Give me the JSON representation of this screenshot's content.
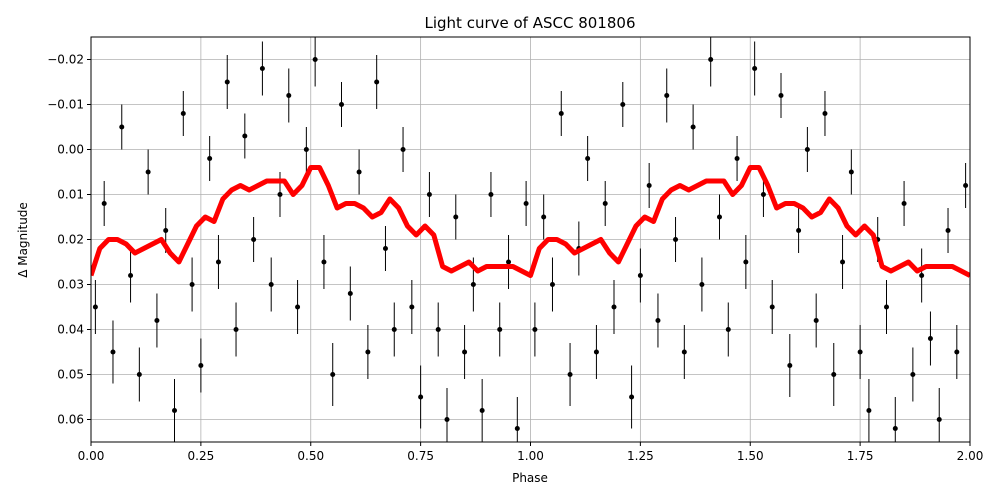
{
  "chart_data": {
    "type": "scatter",
    "title": "Light curve of ASCC 801806",
    "xlabel": "Phase",
    "ylabel": "Δ Magnitude",
    "xlim": [
      0,
      2
    ],
    "ylim": [
      0.065,
      -0.025
    ],
    "xticks": [
      {
        "value": 0,
        "label": "0.00"
      },
      0.25,
      {
        "value": 0.5,
        "label": "0.50"
      },
      0.75,
      {
        "value": 1,
        "label": "1.00"
      },
      1.25,
      {
        "value": 1.5,
        "label": "1.50"
      },
      1.75,
      {
        "value": 2,
        "label": "2.00"
      }
    ],
    "yticks": [
      {
        "value": -0.02,
        "label": "−0.02"
      },
      {
        "value": -0.01,
        "label": "−0.01"
      },
      {
        "value": 0,
        "label": "0.00"
      },
      0.01,
      0.02,
      0.03,
      0.04,
      0.05,
      0.06
    ],
    "grid": true,
    "series": [
      {
        "type": "errorbar",
        "color": "#000000",
        "x": [
          0.01,
          0.03,
          0.05,
          0.07,
          0.09,
          0.11,
          0.13,
          0.15,
          0.17,
          0.19,
          0.21,
          0.23,
          0.25,
          0.27,
          0.29,
          0.31,
          0.33,
          0.35,
          0.37,
          0.39,
          0.41,
          0.43,
          0.45,
          0.47,
          0.49,
          0.51,
          0.53,
          0.55,
          0.57,
          0.59,
          0.61,
          0.63,
          0.65,
          0.67,
          0.69,
          0.71,
          0.73,
          0.75,
          0.77,
          0.79,
          0.81,
          0.83,
          0.85,
          0.87,
          0.89,
          0.91,
          0.93,
          0.95,
          0.97,
          0.99,
          1.01,
          1.03,
          1.05,
          1.07,
          1.09,
          1.11,
          1.13,
          1.15,
          1.17,
          1.19,
          1.21,
          1.23,
          1.25,
          1.27,
          1.29,
          1.31,
          1.33,
          1.35,
          1.37,
          1.39,
          1.41,
          1.43,
          1.45,
          1.47,
          1.49,
          1.51,
          1.53,
          1.55,
          1.57,
          1.59,
          1.61,
          1.63,
          1.65,
          1.67,
          1.69,
          1.71,
          1.73,
          1.75,
          1.77,
          1.79,
          1.81,
          1.83,
          1.85,
          1.87,
          1.89,
          1.91,
          1.93,
          1.95,
          1.97,
          1.99
        ],
        "values": [
          0.035,
          0.012,
          0.045,
          -0.005,
          0.028,
          0.05,
          0.005,
          0.038,
          0.018,
          0.058,
          -0.008,
          0.03,
          0.048,
          0.002,
          0.025,
          -0.015,
          0.04,
          -0.003,
          0.02,
          -0.018,
          0.03,
          0.01,
          -0.012,
          0.035,
          0,
          -0.02,
          0.025,
          0.05,
          -0.01,
          0.032,
          0.005,
          0.045,
          -0.015,
          0.022,
          0.04,
          0,
          0.035,
          0.055,
          0.01,
          0.04,
          0.06,
          0.015,
          0.045,
          0.03,
          0.058,
          0.01,
          0.04,
          0.025,
          0.062,
          0.012,
          0.04,
          0.015,
          0.03,
          -0.008,
          0.05,
          0.022,
          0.002,
          0.045,
          0.012,
          0.035,
          -0.01,
          0.055,
          0.028,
          0.008,
          0.038,
          -0.012,
          0.02,
          0.045,
          -0.005,
          0.03,
          -0.02,
          0.015,
          0.04,
          0.002,
          0.025,
          -0.018,
          0.01,
          0.035,
          -0.012,
          0.048,
          0.018,
          0,
          0.038,
          -0.008,
          0.05,
          0.025,
          0.005,
          0.045,
          0.058,
          0.02,
          0.035,
          0.062,
          0.012,
          0.05,
          0.028,
          0.042,
          0.06,
          0.018,
          0.045,
          0.008
        ],
        "errors": [
          0.006,
          0.005,
          0.007,
          0.005,
          0.006,
          0.006,
          0.005,
          0.006,
          0.005,
          0.007,
          0.005,
          0.006,
          0.006,
          0.005,
          0.006,
          0.006,
          0.006,
          0.005,
          0.005,
          0.006,
          0.006,
          0.005,
          0.006,
          0.006,
          0.005,
          0.006,
          0.006,
          0.007,
          0.005,
          0.006,
          0.005,
          0.006,
          0.006,
          0.005,
          0.006,
          0.005,
          0.006,
          0.007,
          0.005,
          0.006,
          0.007,
          0.005,
          0.006,
          0.006,
          0.007,
          0.005,
          0.006,
          0.006,
          0.007,
          0.005,
          0.006,
          0.005,
          0.006,
          0.005,
          0.007,
          0.006,
          0.005,
          0.006,
          0.005,
          0.006,
          0.005,
          0.007,
          0.006,
          0.005,
          0.006,
          0.006,
          0.005,
          0.006,
          0.005,
          0.006,
          0.006,
          0.005,
          0.006,
          0.005,
          0.006,
          0.006,
          0.005,
          0.006,
          0.005,
          0.007,
          0.005,
          0.005,
          0.006,
          0.005,
          0.007,
          0.006,
          0.005,
          0.006,
          0.007,
          0.005,
          0.006,
          0.007,
          0.005,
          0.006,
          0.006,
          0.006,
          0.007,
          0.005,
          0.006,
          0.005
        ]
      },
      {
        "type": "line",
        "color": "#ff0000",
        "x": [
          0,
          0.02,
          0.04,
          0.06,
          0.08,
          0.1,
          0.12,
          0.14,
          0.16,
          0.18,
          0.2,
          0.22,
          0.24,
          0.26,
          0.28,
          0.3,
          0.32,
          0.34,
          0.36,
          0.38,
          0.4,
          0.42,
          0.44,
          0.46,
          0.48,
          0.5,
          0.52,
          0.54,
          0.56,
          0.58,
          0.6,
          0.62,
          0.64,
          0.66,
          0.68,
          0.7,
          0.72,
          0.74,
          0.76,
          0.78,
          0.8,
          0.82,
          0.84,
          0.86,
          0.88,
          0.9,
          0.92,
          0.94,
          0.96,
          0.98,
          1,
          1.02,
          1.04,
          1.06,
          1.08,
          1.1,
          1.12,
          1.14,
          1.16,
          1.18,
          1.2,
          1.22,
          1.24,
          1.26,
          1.28,
          1.3,
          1.32,
          1.34,
          1.36,
          1.38,
          1.4,
          1.42,
          1.44,
          1.46,
          1.48,
          1.5,
          1.52,
          1.54,
          1.56,
          1.58,
          1.6,
          1.62,
          1.64,
          1.66,
          1.68,
          1.7,
          1.72,
          1.74,
          1.76,
          1.78,
          1.8,
          1.82,
          1.84,
          1.86,
          1.88,
          1.9,
          1.92,
          1.94,
          1.96,
          1.98,
          2
        ],
        "values": [
          0.028,
          0.022,
          0.02,
          0.02,
          0.021,
          0.023,
          0.022,
          0.021,
          0.02,
          0.023,
          0.025,
          0.021,
          0.017,
          0.015,
          0.016,
          0.011,
          0.009,
          0.008,
          0.009,
          0.008,
          0.007,
          0.007,
          0.007,
          0.01,
          0.008,
          0.004,
          0.004,
          0.008,
          0.013,
          0.012,
          0.012,
          0.013,
          0.015,
          0.014,
          0.011,
          0.013,
          0.017,
          0.019,
          0.017,
          0.019,
          0.026,
          0.027,
          0.026,
          0.025,
          0.027,
          0.026,
          0.026,
          0.026,
          0.026,
          0.027,
          0.028,
          0.022,
          0.02,
          0.02,
          0.021,
          0.023,
          0.022,
          0.021,
          0.02,
          0.023,
          0.025,
          0.021,
          0.017,
          0.015,
          0.016,
          0.011,
          0.009,
          0.008,
          0.009,
          0.008,
          0.007,
          0.007,
          0.007,
          0.01,
          0.008,
          0.004,
          0.004,
          0.008,
          0.013,
          0.012,
          0.012,
          0.013,
          0.015,
          0.014,
          0.011,
          0.013,
          0.017,
          0.019,
          0.017,
          0.019,
          0.026,
          0.027,
          0.026,
          0.025,
          0.027,
          0.026,
          0.026,
          0.026,
          0.026,
          0.027,
          0.028
        ]
      }
    ]
  }
}
